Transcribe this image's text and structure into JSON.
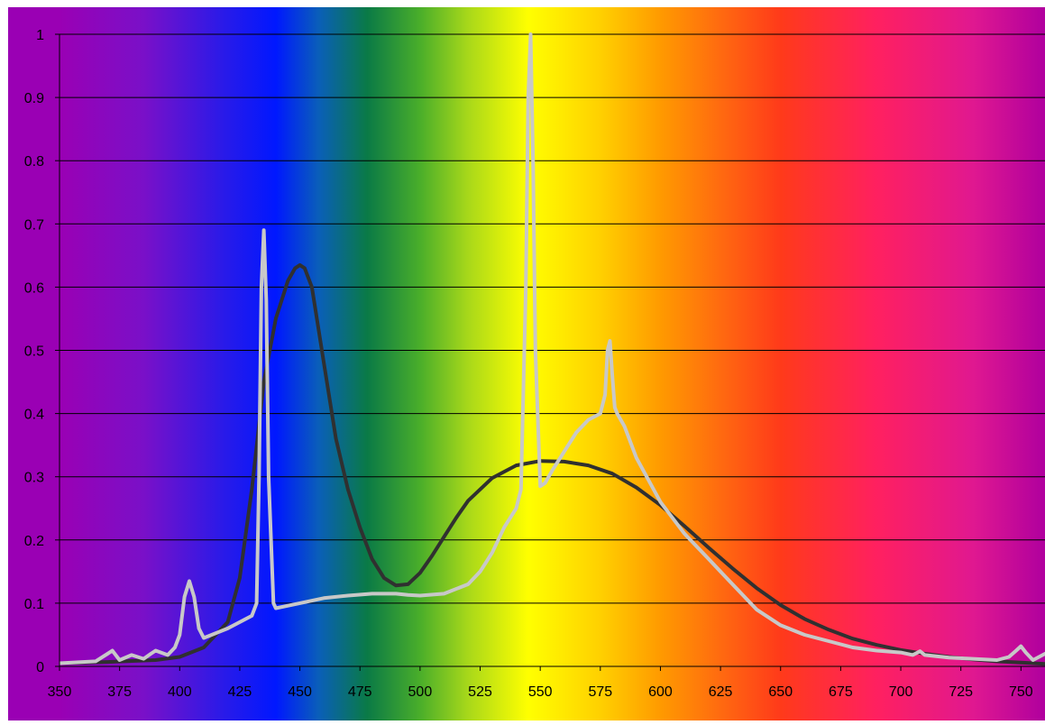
{
  "chart_data": {
    "type": "line",
    "title": "",
    "xlabel": "",
    "ylabel": "",
    "xlim": [
      350,
      760
    ],
    "ylim": [
      0,
      1
    ],
    "x_ticks": [
      350,
      375,
      400,
      425,
      450,
      475,
      500,
      525,
      550,
      575,
      600,
      625,
      650,
      675,
      700,
      725,
      750
    ],
    "x_tick_labels": [
      "350",
      "375",
      "400",
      "425",
      "450",
      "475",
      "500",
      "525",
      "550",
      "575",
      "600",
      "625",
      "650",
      "675",
      "700",
      "725",
      "750"
    ],
    "y_ticks": [
      0,
      0.1,
      0.2,
      0.3,
      0.4,
      0.5,
      0.6,
      0.7,
      0.8,
      0.9,
      1
    ],
    "y_tick_labels": [
      "0",
      "0.1",
      "0.2",
      "0.3",
      "0.4",
      "0.5",
      "0.6",
      "0.7",
      "0.8",
      "0.9",
      "1"
    ],
    "grid": "horizontal",
    "legend": "none",
    "background": "visible spectrum gradient",
    "spectrum_colors": [
      {
        "wl": 350,
        "color": "#9a00b4"
      },
      {
        "wl": 385,
        "color": "#7a10c8"
      },
      {
        "wl": 418,
        "color": "#2a1ae8"
      },
      {
        "wl": 440,
        "color": "#0018ff"
      },
      {
        "wl": 458,
        "color": "#0a5fb8"
      },
      {
        "wl": 478,
        "color": "#0a7a46"
      },
      {
        "wl": 500,
        "color": "#4aae2a"
      },
      {
        "wl": 520,
        "color": "#a8d81a"
      },
      {
        "wl": 545,
        "color": "#ffff00"
      },
      {
        "wl": 575,
        "color": "#ffd000"
      },
      {
        "wl": 600,
        "color": "#ff9a00"
      },
      {
        "wl": 625,
        "color": "#ff6a10"
      },
      {
        "wl": 650,
        "color": "#ff3a1a"
      },
      {
        "wl": 690,
        "color": "#ff2060"
      },
      {
        "wl": 730,
        "color": "#e01890"
      },
      {
        "wl": 760,
        "color": "#b0009e"
      }
    ],
    "series": [
      {
        "color": "#303030",
        "x": [
          350,
          370,
          390,
          400,
          410,
          420,
          425,
          430,
          435,
          440,
          445,
          448,
          450,
          452,
          455,
          460,
          465,
          470,
          475,
          480,
          485,
          490,
          495,
          500,
          505,
          510,
          515,
          520,
          530,
          540,
          550,
          560,
          570,
          580,
          590,
          600,
          610,
          620,
          630,
          640,
          650,
          660,
          670,
          680,
          690,
          700,
          710,
          720,
          730,
          740,
          750,
          760
        ],
        "y": [
          0.005,
          0.007,
          0.01,
          0.015,
          0.03,
          0.07,
          0.14,
          0.28,
          0.45,
          0.55,
          0.61,
          0.63,
          0.635,
          0.63,
          0.6,
          0.48,
          0.36,
          0.28,
          0.22,
          0.17,
          0.14,
          0.128,
          0.13,
          0.148,
          0.175,
          0.205,
          0.235,
          0.262,
          0.298,
          0.318,
          0.325,
          0.324,
          0.318,
          0.305,
          0.283,
          0.255,
          0.222,
          0.188,
          0.155,
          0.124,
          0.097,
          0.075,
          0.058,
          0.044,
          0.034,
          0.026,
          0.02,
          0.015,
          0.011,
          0.008,
          0.006,
          0.004
        ]
      },
      {
        "color": "#c8c8c8",
        "x": [
          350,
          365,
          370,
          372,
          375,
          380,
          385,
          388,
          390,
          395,
          398,
          400,
          402,
          404,
          406,
          408,
          410,
          420,
          430,
          432,
          433,
          434,
          435,
          436,
          437,
          439,
          440,
          450,
          460,
          470,
          480,
          490,
          495,
          500,
          510,
          520,
          525,
          530,
          535,
          540,
          542,
          544,
          545,
          546,
          547,
          548,
          550,
          552,
          555,
          560,
          565,
          570,
          575,
          577,
          578,
          579,
          580,
          581,
          582,
          585,
          590,
          600,
          610,
          620,
          630,
          640,
          650,
          660,
          670,
          680,
          690,
          700,
          705,
          708,
          710,
          720,
          730,
          740,
          745,
          748,
          750,
          752,
          755,
          760
        ],
        "y": [
          0.005,
          0.008,
          0.02,
          0.025,
          0.01,
          0.018,
          0.012,
          0.02,
          0.025,
          0.018,
          0.03,
          0.05,
          0.11,
          0.135,
          0.11,
          0.06,
          0.045,
          0.06,
          0.08,
          0.1,
          0.3,
          0.6,
          0.69,
          0.58,
          0.3,
          0.1,
          0.092,
          0.1,
          0.108,
          0.112,
          0.115,
          0.115,
          0.113,
          0.112,
          0.115,
          0.13,
          0.15,
          0.18,
          0.22,
          0.25,
          0.28,
          0.6,
          0.9,
          1.0,
          0.8,
          0.5,
          0.285,
          0.29,
          0.31,
          0.34,
          0.37,
          0.39,
          0.4,
          0.43,
          0.5,
          0.515,
          0.46,
          0.41,
          0.4,
          0.38,
          0.33,
          0.26,
          0.21,
          0.17,
          0.13,
          0.09,
          0.065,
          0.05,
          0.04,
          0.03,
          0.025,
          0.022,
          0.018,
          0.024,
          0.018,
          0.014,
          0.012,
          0.01,
          0.015,
          0.025,
          0.032,
          0.022,
          0.01,
          0.02
        ]
      }
    ]
  }
}
